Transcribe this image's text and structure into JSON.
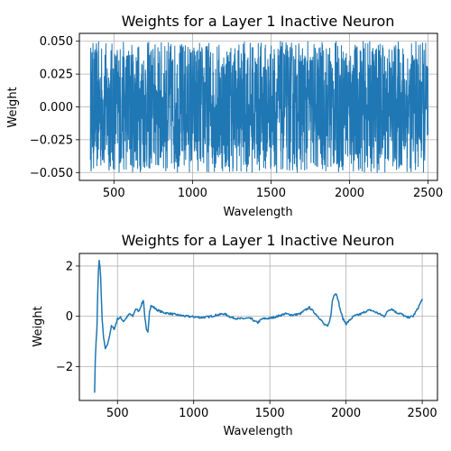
{
  "chart_data": [
    {
      "type": "line",
      "title": "Weights for a Layer 1 Inactive Neuron",
      "xlabel": "Wavelength",
      "ylabel": "Weight",
      "xlim": [
        280,
        2560
      ],
      "ylim": [
        -0.056,
        0.056
      ],
      "xticks": [
        500,
        1000,
        1500,
        2000,
        2500
      ],
      "xtick_labels": [
        "500",
        "1000",
        "1500",
        "2000",
        "2500"
      ],
      "yticks": [
        -0.05,
        -0.025,
        0.0,
        0.025,
        0.05
      ],
      "ytick_labels": [
        "−0.050",
        "−0.025",
        "0.000",
        "0.025",
        "0.050"
      ],
      "grid": true,
      "color": "#1f77b4",
      "series": [
        {
          "x_range": [
            350,
            2500
          ],
          "pattern": "dense uniform random noise",
          "y_range": [
            -0.05,
            0.05
          ]
        }
      ]
    },
    {
      "type": "line",
      "title": "Weights for a Layer 1 Inactive Neuron",
      "xlabel": "Wavelength",
      "ylabel": "Weight",
      "xlim": [
        250,
        2600
      ],
      "ylim": [
        -3.35,
        2.5
      ],
      "xticks": [
        500,
        1000,
        1500,
        2000,
        2500
      ],
      "xtick_labels": [
        "500",
        "1000",
        "1500",
        "2000",
        "2500"
      ],
      "yticks": [
        -2,
        0,
        2
      ],
      "ytick_labels": [
        "−2",
        "0",
        "2"
      ],
      "grid": true,
      "color": "#1f77b4",
      "series": [
        {
          "x": [
            350,
            355,
            360,
            365,
            370,
            375,
            380,
            385,
            390,
            395,
            400,
            410,
            420,
            430,
            440,
            450,
            460,
            480,
            500,
            520,
            540,
            560,
            580,
            600,
            620,
            640,
            660,
            670,
            680,
            690,
            700,
            710,
            720,
            730,
            740,
            760,
            800,
            850,
            900,
            950,
            1000,
            1050,
            1100,
            1150,
            1200,
            1250,
            1300,
            1350,
            1380,
            1400,
            1420,
            1450,
            1500,
            1550,
            1600,
            1650,
            1700,
            1720,
            1760,
            1800,
            1830,
            1860,
            1880,
            1900,
            1910,
            1920,
            1930,
            1940,
            1950,
            1960,
            1980,
            2000,
            2050,
            2100,
            2130,
            2160,
            2200,
            2250,
            2280,
            2300,
            2330,
            2360,
            2400,
            2440,
            2470,
            2490,
            2500
          ],
          "y": [
            -3.0,
            -1.6,
            -1.0,
            -0.5,
            0.8,
            1.8,
            2.2,
            2.0,
            1.5,
            0.6,
            -0.2,
            -0.9,
            -1.3,
            -1.2,
            -1.0,
            -0.7,
            -0.4,
            -0.5,
            -0.1,
            -0.05,
            -0.2,
            -0.05,
            0.1,
            0.0,
            0.3,
            0.2,
            0.5,
            0.65,
            -0.05,
            -0.55,
            -0.65,
            0.2,
            0.42,
            0.38,
            0.35,
            0.25,
            0.15,
            0.1,
            0.05,
            0.0,
            -0.02,
            -0.05,
            -0.02,
            0.05,
            0.1,
            -0.05,
            -0.1,
            -0.08,
            -0.1,
            -0.2,
            -0.25,
            -0.1,
            -0.08,
            0.0,
            0.1,
            0.05,
            0.1,
            0.2,
            0.35,
            0.1,
            -0.1,
            -0.35,
            -0.4,
            0.0,
            0.6,
            0.85,
            0.9,
            0.85,
            0.6,
            0.3,
            -0.1,
            -0.3,
            0.0,
            0.1,
            0.2,
            0.25,
            0.15,
            0.0,
            0.25,
            0.3,
            0.15,
            0.1,
            -0.05,
            0.0,
            0.3,
            0.55,
            0.7
          ]
        }
      ]
    }
  ]
}
